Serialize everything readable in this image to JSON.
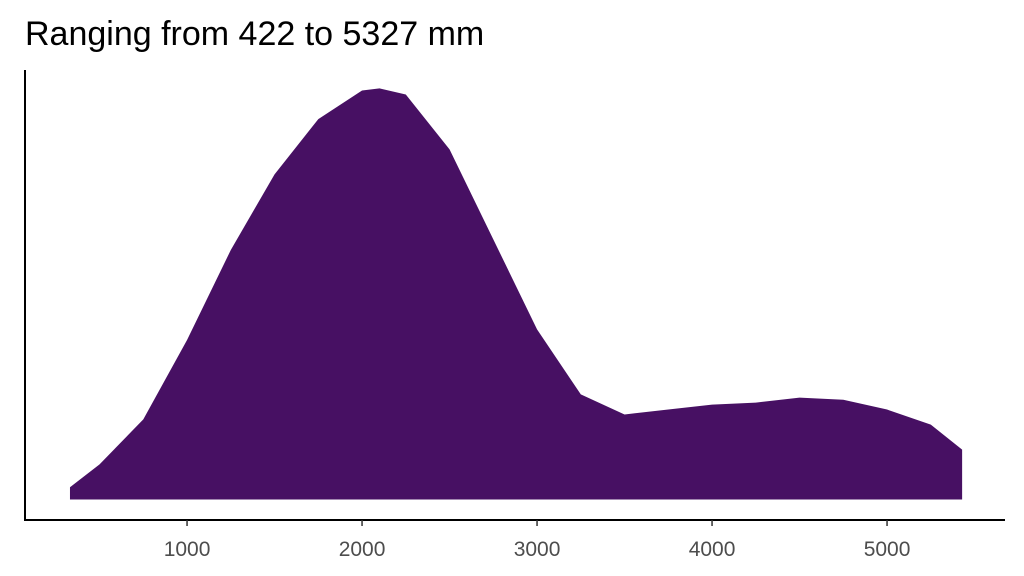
{
  "chart_data": {
    "type": "density",
    "title": "Ranging from 422 to 5327 mm",
    "color": "#471063",
    "x": [
      331,
      500,
      750,
      1000,
      1250,
      1500,
      1750,
      2000,
      2100,
      2250,
      2500,
      2750,
      3000,
      3250,
      3500,
      3750,
      4000,
      4250,
      4500,
      4750,
      5000,
      5250,
      5429
    ],
    "values": [
      0.03,
      0.086,
      0.196,
      0.39,
      0.61,
      0.795,
      0.93,
      1.0,
      1.005,
      0.99,
      0.856,
      0.636,
      0.416,
      0.257,
      0.208,
      0.22,
      0.232,
      0.237,
      0.249,
      0.244,
      0.22,
      0.183,
      0.122
    ],
    "xlim": [
      74,
      5674
    ],
    "xticks": [
      1000,
      2000,
      3000,
      4000,
      5000
    ],
    "ylim": [
      -0.05,
      1.05
    ]
  }
}
